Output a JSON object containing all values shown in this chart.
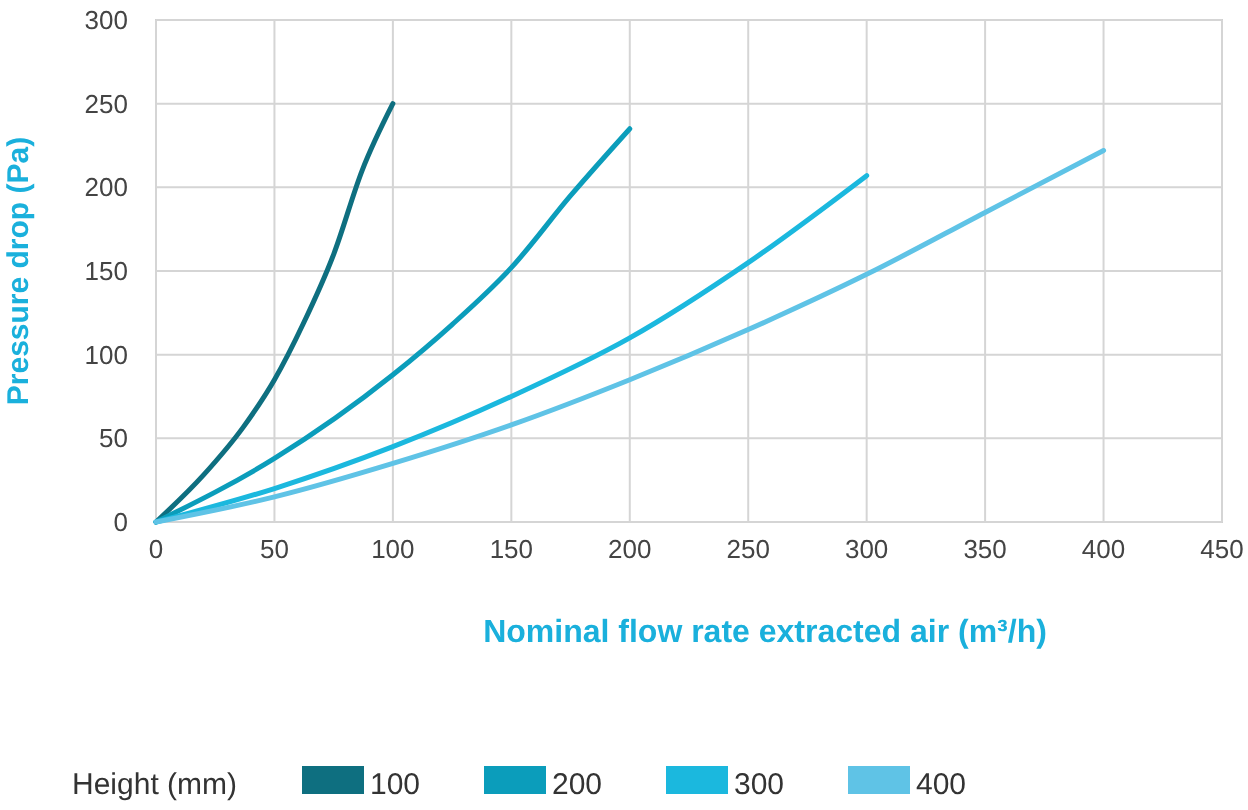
{
  "chart_data": {
    "type": "line",
    "xlabel": "Nominal flow rate extracted air (m³/h)",
    "ylabel": "Pressure drop (Pa)",
    "legend_title": "Height (mm)",
    "legend": "bottom",
    "grid": true,
    "marker": "none",
    "line_style": "solid",
    "xlim": [
      0,
      450
    ],
    "xticks": [
      0,
      50,
      100,
      150,
      200,
      250,
      300,
      350,
      400,
      450
    ],
    "ylim": [
      0,
      300
    ],
    "yticks": [
      0,
      50,
      100,
      150,
      200,
      250,
      300
    ],
    "series": [
      {
        "name": "100",
        "color": "#0e6f80",
        "x": [
          0,
          20,
          37,
          50,
          62,
          75,
          87,
          100
        ],
        "values": [
          0,
          28,
          57,
          85,
          118,
          160,
          210,
          250
        ]
      },
      {
        "name": "200",
        "color": "#0b9dbb",
        "x": [
          0,
          50,
          100,
          125,
          150,
          175,
          200
        ],
        "values": [
          0,
          38,
          88,
          118,
          152,
          195,
          235
        ]
      },
      {
        "name": "300",
        "color": "#1bb8de",
        "x": [
          0,
          50,
          100,
          150,
          200,
          250,
          300
        ],
        "values": [
          0,
          20,
          45,
          75,
          110,
          155,
          207
        ]
      },
      {
        "name": "400",
        "color": "#5fc3e6",
        "x": [
          0,
          50,
          100,
          150,
          200,
          250,
          300,
          350,
          400
        ],
        "values": [
          0,
          15,
          35,
          58,
          85,
          115,
          148,
          185,
          222
        ]
      }
    ]
  }
}
